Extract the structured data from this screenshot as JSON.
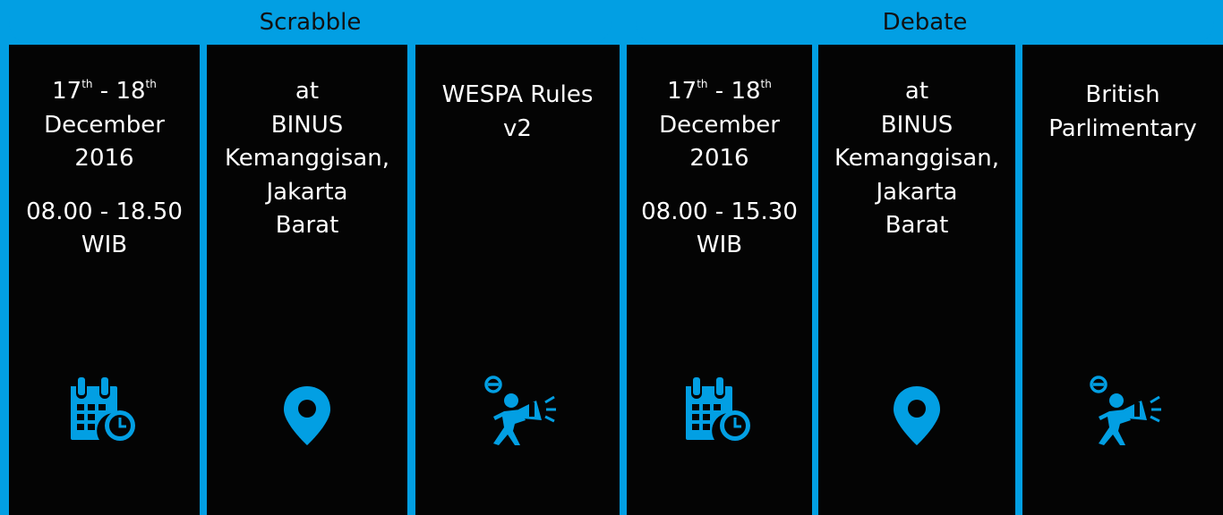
{
  "colors": {
    "accent": "#029fe3",
    "panel": "#040404",
    "text": "#ffffff",
    "header_text": "#111111"
  },
  "scrabble": {
    "title": "Scrabble",
    "date": {
      "day1": "17",
      "sup1": "th",
      "sep": " - ",
      "day2": "18",
      "sup2": "th",
      "month": "December",
      "year": "2016",
      "time": "08.00 - 18.50",
      "zone": "WIB",
      "icon": "calendar-clock-icon"
    },
    "venue": {
      "line1": "at",
      "line2": "BINUS",
      "line3": "Kemanggisan,",
      "line4": "Jakarta",
      "line5": "Barat",
      "icon": "location-pin-icon"
    },
    "rules": {
      "line1": "WESPA Rules",
      "line2": "v2",
      "icon": "megaphone-person-icon"
    }
  },
  "debate": {
    "title": "Debate",
    "date": {
      "day1": "17",
      "sup1": "th",
      "sep": " - ",
      "day2": "18",
      "sup2": "th",
      "month": "December",
      "year": "2016",
      "time": "08.00 - 15.30",
      "zone": "WIB",
      "icon": "calendar-clock-icon"
    },
    "venue": {
      "line1": "at",
      "line2": "BINUS",
      "line3": "Kemanggisan,",
      "line4": "Jakarta",
      "line5": "Barat",
      "icon": "location-pin-icon"
    },
    "rules": {
      "line1": "British",
      "line2": "Parlimentary",
      "icon": "megaphone-person-icon"
    }
  }
}
